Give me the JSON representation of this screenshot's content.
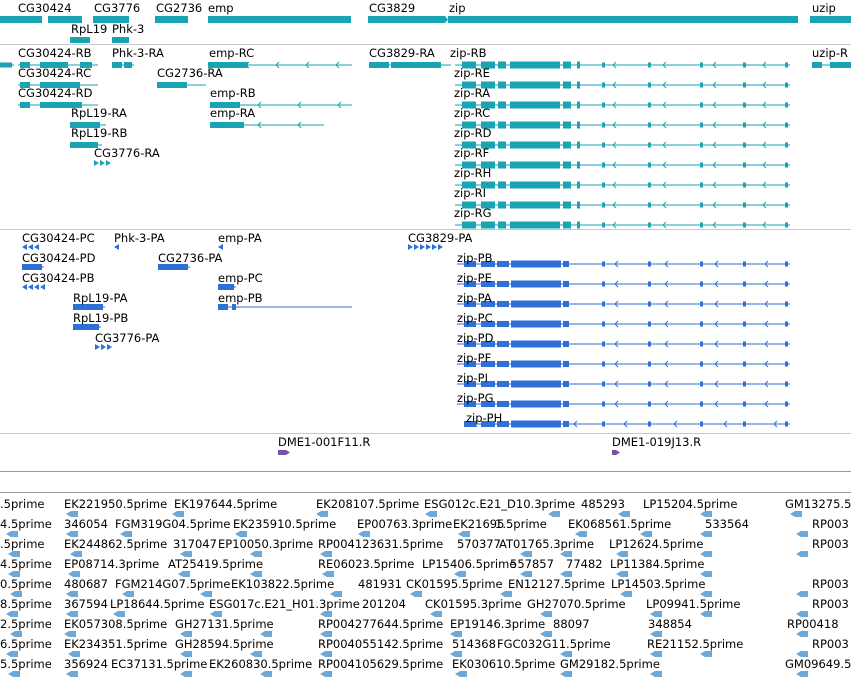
{
  "colors": {
    "gene": "#1aa3b3",
    "protein": "#2f6fd6",
    "clone": "#7a4fa8",
    "est": "#6fa8d6",
    "separator": "#c8c8c8"
  },
  "genes": {
    "top_labels": [
      "CG30424",
      "CG3776",
      "CG2736",
      "emp",
      "CG3829",
      "zip",
      "uzip",
      "RpL19",
      "Phk-3"
    ]
  },
  "transcripts": {
    "left": [
      "CG30424-RB",
      "Phk-3-RA",
      "emp-RC",
      "CG30424-RC",
      "CG2736-RA",
      "CG30424-RD",
      "emp-RB",
      "RpL19-RA",
      "emp-RA",
      "RpL19-RB",
      "CG3776-RA",
      "CG3829-RA",
      "uzip-R"
    ],
    "zip": [
      "zip-RB",
      "zip-RE",
      "zip-RA",
      "zip-RC",
      "zip-RD",
      "zip-RF",
      "zip-RH",
      "zip-RI",
      "zip-RG"
    ]
  },
  "proteins": {
    "left": [
      "CG30424-PC",
      "Phk-3-PA",
      "emp-PA",
      "CG30424-PD",
      "CG2736-PA",
      "CG30424-PB",
      "emp-PC",
      "emp-PB",
      "RpL19-PA",
      "RpL19-PB",
      "CG3776-PA",
      "CG3829-PA"
    ],
    "zip": [
      "zip-PB",
      "zip-PE",
      "zip-PA",
      "zip-PC",
      "zip-PD",
      "zip-PF",
      "zip-PI",
      "zip-PG",
      "zip-PH"
    ]
  },
  "clones": [
    "DME1-001F11.R",
    "DME1-019J13.R"
  ],
  "ests": [
    [
      ".5prime",
      "EK221950.5prime",
      "EK197644.5prime",
      "EK208107.5prime",
      "ESG012c.E21_D10.3prime",
      "485293",
      "LP15204.5prime",
      "GM13275.5"
    ],
    [
      "4.5prime",
      "346054",
      "FGM319G04.5prime",
      "EK235910.5prime",
      "EP00763.3prime",
      "EK21695",
      "1.5prime",
      "EK068561.5prime",
      "533564",
      "RP003"
    ],
    [
      ".5prime",
      "EK244862.5prime",
      "317047",
      "EP10050.3prime",
      "RP004123631.5prime",
      "570377",
      "AT01765.3prime",
      "LP12624.5prime",
      "RP003"
    ],
    [
      "4.5prime",
      "EP08714.3prime",
      "AT25419.5prime",
      "RE06023.5prime",
      "LP15406.5prime",
      "557857",
      "77482",
      "LP11384.5prime"
    ],
    [
      "0.5prime",
      "480687",
      "FGM214G07.5prime",
      "EK103822.5prime",
      "481931",
      "CK01595.5prime",
      "EN12127.5prime",
      "LP14503.5prime",
      "RP003"
    ],
    [
      "8.5prime",
      "367594",
      "LP18644.5prime",
      "ESG017c.E21_H01.3prime",
      "201204",
      "CK01595.3prime",
      "GH27070.5prime",
      "LP09941.5prime",
      "RP003"
    ],
    [
      "2.5prime",
      "EK057308.5prime",
      "GH27131.5prime",
      "RP004277644.5prime",
      "EP19146.3prime",
      "88097",
      "348854",
      "RP00418"
    ],
    [
      "6.5prime",
      "EK234351.5prime",
      "GH28594.5prime",
      "RP004055142.5prime",
      "514368",
      "FGC032G11.5prime",
      "RE21152.5prime",
      "RP003"
    ],
    [
      "5.5prime",
      "356924",
      "EC37131.5prime",
      "EK260830.5prime",
      "RP004105629.5prime",
      "EK030610.5prime",
      "GM29182.5prime",
      "GM09649.5"
    ]
  ]
}
